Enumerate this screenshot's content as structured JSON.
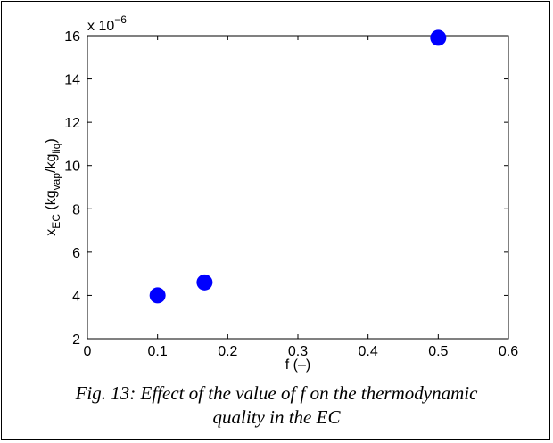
{
  "chart_data": {
    "type": "scatter",
    "title": "",
    "xlabel": "f (–)",
    "ylabel": {
      "base": "x",
      "base_sub": "EC",
      "open": " (kg",
      "num_sub": "vap",
      "slash": "/kg",
      "den_sub": "liq",
      "close": ")"
    },
    "exponent_label": {
      "base": "x 10",
      "power": "−6"
    },
    "xlim": [
      0,
      0.6
    ],
    "ylim": [
      2,
      16
    ],
    "x_ticks": [
      0,
      0.1,
      0.2,
      0.3,
      0.4,
      0.5,
      0.6
    ],
    "x_tick_labels": [
      "0",
      "0.1",
      "0.2",
      "0.3",
      "0.4",
      "0.5",
      "0.6"
    ],
    "y_ticks": [
      2,
      4,
      6,
      8,
      10,
      12,
      14,
      16
    ],
    "y_tick_labels": [
      "2",
      "4",
      "6",
      "8",
      "10",
      "12",
      "14",
      "16"
    ],
    "grid": false,
    "marker_color": "#0000ff",
    "series": [
      {
        "x": [
          0.1,
          0.167,
          0.5
        ],
        "y": [
          4.0,
          4.6,
          15.9
        ]
      }
    ]
  },
  "caption": {
    "line1": "Fig. 13: Effect of the value of f on the thermodynamic",
    "line2": "quality in the EC"
  }
}
